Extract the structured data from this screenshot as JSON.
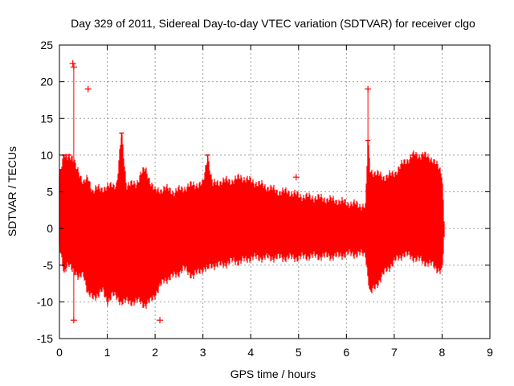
{
  "chart_data": {
    "type": "line",
    "title": "Day 329 of 2011, Sidereal Day-to-day VTEC variation (SDTVAR) for receiver clgo",
    "xlabel": "GPS time / hours",
    "ylabel": "SDTVAR / TECUs",
    "xlim": [
      0,
      9
    ],
    "ylim": [
      -15,
      25
    ],
    "xticks": [
      "0",
      "1",
      "2",
      "3",
      "4",
      "5",
      "6",
      "7",
      "8",
      "9"
    ],
    "yticks": [
      "-15",
      "-10",
      "-5",
      "0",
      "5",
      "10",
      "15",
      "20",
      "25"
    ],
    "grid": true,
    "series": [
      {
        "name": "SDTVAR",
        "color": "#ff0000",
        "style": "errorbars",
        "x": [
          0.0,
          0.1,
          0.2,
          0.3,
          0.4,
          0.5,
          0.6,
          0.7,
          0.8,
          0.9,
          1.0,
          1.1,
          1.2,
          1.3,
          1.4,
          1.5,
          1.6,
          1.7,
          1.8,
          1.9,
          2.0,
          2.2,
          2.4,
          2.6,
          2.8,
          3.0,
          3.1,
          3.2,
          3.4,
          3.6,
          3.8,
          4.0,
          4.2,
          4.4,
          4.6,
          4.8,
          5.0,
          5.2,
          5.4,
          5.6,
          5.8,
          6.0,
          6.2,
          6.4,
          6.45,
          6.5,
          6.6,
          6.8,
          7.0,
          7.2,
          7.4,
          7.6,
          7.8,
          8.0,
          8.05
        ],
        "upper": [
          7.0,
          10.0,
          10.0,
          9.0,
          8.0,
          6.0,
          7.0,
          5.0,
          5.5,
          5.5,
          5.5,
          6.0,
          6.0,
          13.0,
          6.0,
          6.0,
          6.0,
          7.5,
          8.0,
          6.5,
          5.0,
          5.5,
          5.0,
          5.5,
          6.0,
          6.0,
          10.0,
          6.0,
          6.5,
          6.5,
          7.0,
          6.5,
          6.0,
          5.5,
          5.0,
          5.0,
          4.5,
          4.3,
          4.2,
          4.0,
          3.8,
          3.5,
          3.3,
          3.0,
          12.0,
          8.0,
          7.5,
          7.0,
          7.5,
          9.0,
          10.0,
          10.0,
          9.5,
          7.5,
          0.5
        ],
        "lower": [
          -2.0,
          -6.0,
          -5.0,
          -5.5,
          -7.0,
          -6.0,
          -9.0,
          -9.5,
          -9.0,
          -8.5,
          -10.0,
          -9.0,
          -9.5,
          -10.0,
          -10.0,
          -10.0,
          -10.0,
          -10.0,
          -10.5,
          -10.0,
          -9.0,
          -7.0,
          -6.5,
          -5.5,
          -6.5,
          -5.5,
          -5.5,
          -5.0,
          -5.0,
          -4.5,
          -4.5,
          -4.0,
          -4.0,
          -4.0,
          -4.0,
          -4.0,
          -4.0,
          -3.8,
          -3.8,
          -3.8,
          -3.8,
          -3.5,
          -3.5,
          -3.5,
          -6.5,
          -9.0,
          -8.0,
          -6.0,
          -4.5,
          -3.5,
          -4.0,
          -4.5,
          -5.0,
          -6.0,
          -1.0
        ]
      }
    ],
    "outliers": [
      {
        "x": 0.28,
        "y": 22.5
      },
      {
        "x": 0.3,
        "y": 22.0
      },
      {
        "x": 0.3,
        "y": -12.5
      },
      {
        "x": 0.6,
        "y": 19.0
      },
      {
        "x": 2.1,
        "y": -12.5
      },
      {
        "x": 4.95,
        "y": 7.0
      },
      {
        "x": 6.45,
        "y": 19.0
      }
    ]
  }
}
